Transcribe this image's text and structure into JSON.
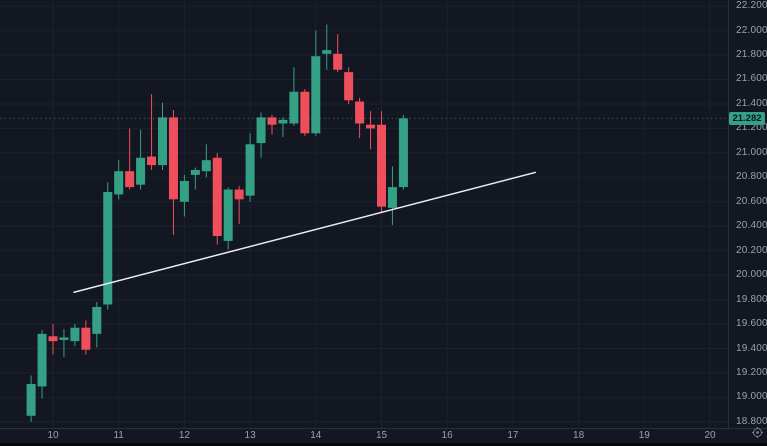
{
  "chart_data": {
    "type": "candlestick",
    "title": "",
    "x_axis": {
      "labels": [
        "10",
        "11",
        "12",
        "13",
        "14",
        "15",
        "16",
        "17",
        "18",
        "19",
        "20"
      ],
      "unit": "day-of-month",
      "first_label_candle_index": 2,
      "candles_per_day": 6
    },
    "ylim": [
      18.75,
      22.25
    ],
    "y_ticks": [
      22.2,
      22.0,
      21.8,
      21.6,
      21.4,
      21.2,
      21.0,
      20.8,
      20.6,
      20.4,
      20.2,
      20.0,
      19.8,
      19.6,
      19.4,
      19.2,
      19.0,
      18.8
    ],
    "y_tick_decimals": 3,
    "grid": true,
    "last_price": 21.282,
    "last_price_label": "21.282",
    "candles": [
      {
        "o": 18.85,
        "h": 19.18,
        "l": 18.8,
        "c": 19.11
      },
      {
        "o": 19.09,
        "h": 19.55,
        "l": 18.99,
        "c": 19.52
      },
      {
        "o": 19.5,
        "h": 19.6,
        "l": 19.35,
        "c": 19.46
      },
      {
        "o": 19.47,
        "h": 19.56,
        "l": 19.33,
        "c": 19.49
      },
      {
        "o": 19.46,
        "h": 19.6,
        "l": 19.42,
        "c": 19.57
      },
      {
        "o": 19.57,
        "h": 19.63,
        "l": 19.35,
        "c": 19.39
      },
      {
        "o": 19.52,
        "h": 19.78,
        "l": 19.41,
        "c": 19.74
      },
      {
        "o": 19.76,
        "h": 20.76,
        "l": 19.72,
        "c": 20.68
      },
      {
        "o": 20.66,
        "h": 20.94,
        "l": 20.62,
        "c": 20.85
      },
      {
        "o": 20.85,
        "h": 21.2,
        "l": 20.7,
        "c": 20.72
      },
      {
        "o": 20.74,
        "h": 21.19,
        "l": 20.7,
        "c": 20.96
      },
      {
        "o": 20.97,
        "h": 21.48,
        "l": 20.86,
        "c": 20.9
      },
      {
        "o": 20.9,
        "h": 21.41,
        "l": 20.86,
        "c": 21.29
      },
      {
        "o": 21.29,
        "h": 21.35,
        "l": 20.33,
        "c": 20.62
      },
      {
        "o": 20.6,
        "h": 20.82,
        "l": 20.48,
        "c": 20.77
      },
      {
        "o": 20.82,
        "h": 20.88,
        "l": 20.7,
        "c": 20.86
      },
      {
        "o": 20.85,
        "h": 21.07,
        "l": 20.8,
        "c": 20.94
      },
      {
        "o": 20.96,
        "h": 21.0,
        "l": 20.25,
        "c": 20.32
      },
      {
        "o": 20.28,
        "h": 20.72,
        "l": 20.21,
        "c": 20.7
      },
      {
        "o": 20.7,
        "h": 20.73,
        "l": 20.42,
        "c": 20.62
      },
      {
        "o": 20.65,
        "h": 21.16,
        "l": 20.6,
        "c": 21.07
      },
      {
        "o": 21.08,
        "h": 21.33,
        "l": 20.96,
        "c": 21.29
      },
      {
        "o": 21.29,
        "h": 21.31,
        "l": 21.15,
        "c": 21.23
      },
      {
        "o": 21.24,
        "h": 21.29,
        "l": 21.13,
        "c": 21.27
      },
      {
        "o": 21.24,
        "h": 21.7,
        "l": 21.22,
        "c": 21.5
      },
      {
        "o": 21.5,
        "h": 21.52,
        "l": 21.14,
        "c": 21.16
      },
      {
        "o": 21.16,
        "h": 22.0,
        "l": 21.14,
        "c": 21.79
      },
      {
        "o": 21.81,
        "h": 22.05,
        "l": 21.68,
        "c": 21.84
      },
      {
        "o": 21.81,
        "h": 21.97,
        "l": 21.66,
        "c": 21.68
      },
      {
        "o": 21.66,
        "h": 21.7,
        "l": 21.4,
        "c": 21.43
      },
      {
        "o": 21.42,
        "h": 21.45,
        "l": 21.12,
        "c": 21.24
      },
      {
        "o": 21.23,
        "h": 21.34,
        "l": 21.03,
        "c": 21.2
      },
      {
        "o": 21.23,
        "h": 21.34,
        "l": 20.51,
        "c": 20.56
      },
      {
        "o": 20.55,
        "h": 20.89,
        "l": 20.41,
        "c": 20.72
      },
      {
        "o": 20.72,
        "h": 21.31,
        "l": 20.7,
        "c": 21.282
      }
    ],
    "trendline": {
      "from": {
        "day": 10.32,
        "price": 19.86
      },
      "to": {
        "day": 17.34,
        "price": 20.84
      }
    },
    "legend": "none",
    "colors": {
      "background": "#131722",
      "up": "#35a184",
      "down": "#ef4f5c",
      "grid": "#1c212e",
      "axis_text": "#9ba1ad",
      "axis_border": "#2a2e39",
      "trendline": "#eceef2",
      "last_price_line": "#8a93a3",
      "badge_text": "#0c1320"
    }
  },
  "icons": {
    "bottom_right": "gear-icon"
  }
}
